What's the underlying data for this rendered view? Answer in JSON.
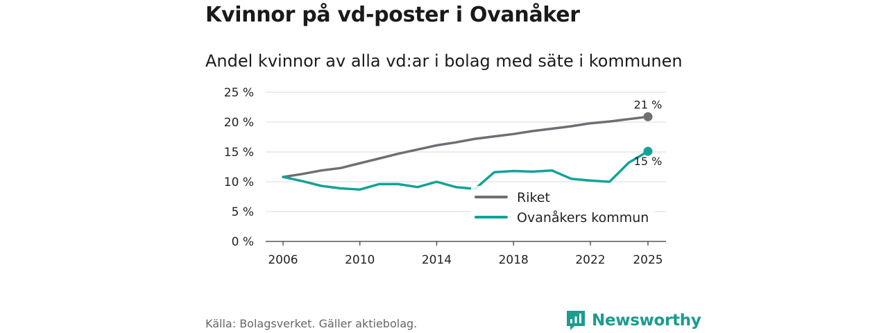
{
  "title": "Kvinnor på vd-poster i Ovanåker",
  "subtitle": "Andel kvinnor av alla vd:ar i bolag med säte i kommunen",
  "source": "Källa: Bolagsverket. Gäller aktiebolag.",
  "brand": {
    "name": "Newsworthy",
    "color": "#1c9b8f",
    "icon": "bar-chart-speech-bubble-icon"
  },
  "chart_data": {
    "type": "line",
    "title": "Kvinnor på vd-poster i Ovanåker",
    "subtitle": "Andel kvinnor av alla vd:ar i bolag med säte i kommunen",
    "xlabel": "",
    "ylabel": "",
    "x": [
      2006,
      2007,
      2008,
      2009,
      2010,
      2011,
      2012,
      2013,
      2014,
      2015,
      2016,
      2017,
      2018,
      2019,
      2020,
      2021,
      2022,
      2023,
      2024,
      2025
    ],
    "xticks": [
      2006,
      2010,
      2014,
      2018,
      2022,
      2025
    ],
    "xtick_labels": [
      "2006",
      "2010",
      "2014",
      "2018",
      "2022",
      "2025"
    ],
    "xlim": [
      2006,
      2025
    ],
    "ylim": [
      0,
      25
    ],
    "yticks": [
      0,
      5,
      10,
      15,
      20,
      25
    ],
    "ytick_labels": [
      "0 %",
      "5 %",
      "10 %",
      "15 %",
      "20 %",
      "25 %"
    ],
    "grid": true,
    "legend_position": "bottom-right",
    "series": [
      {
        "name": "Riket",
        "color": "#6e6e73",
        "values": [
          10.8,
          11.3,
          11.9,
          12.3,
          13.1,
          13.9,
          14.7,
          15.4,
          16.1,
          16.6,
          17.2,
          17.6,
          18.0,
          18.5,
          18.9,
          19.3,
          19.8,
          20.1,
          20.5,
          20.9
        ],
        "end_label": "21 %"
      },
      {
        "name": "Ovanåkers kommun",
        "color": "#13a397",
        "values": [
          10.8,
          10.1,
          9.3,
          8.9,
          8.7,
          9.6,
          9.6,
          9.1,
          10.0,
          9.1,
          8.8,
          11.6,
          11.8,
          11.7,
          11.9,
          10.5,
          10.2,
          10.0,
          13.2,
          15.1
        ],
        "end_label": "15 %"
      }
    ]
  }
}
